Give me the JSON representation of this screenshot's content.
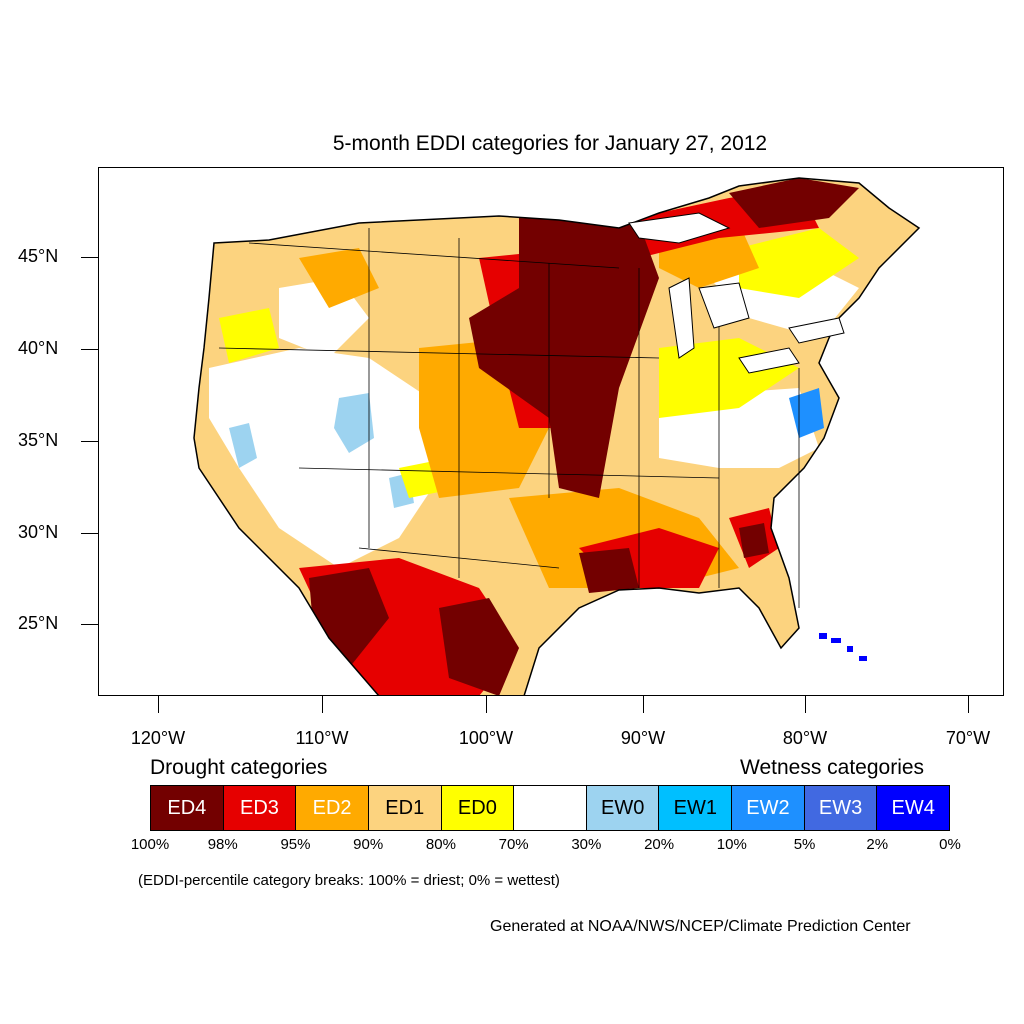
{
  "title": "5-month EDDI categories for January 27, 2012",
  "lat_labels": [
    "45°N",
    "40°N",
    "35°N",
    "30°N",
    "25°N"
  ],
  "lon_labels": [
    "120°W",
    "110°W",
    "100°W",
    "90°W",
    "80°W",
    "70°W"
  ],
  "legend": {
    "drought_heading": "Drought categories",
    "wetness_heading": "Wetness categories",
    "categories": [
      {
        "label": "ED4",
        "color": "#730000",
        "text_color": "#ffffff"
      },
      {
        "label": "ED3",
        "color": "#e60000",
        "text_color": "#ffffff"
      },
      {
        "label": "ED2",
        "color": "#ffaa00",
        "text_color": "#ffffff"
      },
      {
        "label": "ED1",
        "color": "#fcd37f",
        "text_color": "#000000"
      },
      {
        "label": "ED0",
        "color": "#ffff00",
        "text_color": "#000000"
      },
      {
        "label": "",
        "color": "#ffffff",
        "text_color": "#000000"
      },
      {
        "label": "EW0",
        "color": "#9dd3f0",
        "text_color": "#000000"
      },
      {
        "label": "EW1",
        "color": "#00bfff",
        "text_color": "#000000"
      },
      {
        "label": "EW2",
        "color": "#1e90ff",
        "text_color": "#ffffff"
      },
      {
        "label": "EW3",
        "color": "#4169e1",
        "text_color": "#ffffff"
      },
      {
        "label": "EW4",
        "color": "#0000ff",
        "text_color": "#ffffff"
      }
    ],
    "percent_breaks": [
      "100%",
      "98%",
      "95%",
      "90%",
      "80%",
      "70%",
      "30%",
      "20%",
      "10%",
      "5%",
      "2%",
      "0%"
    ]
  },
  "note": "(EDDI-percentile category breaks: 100% = driest; 0% = wettest)",
  "credit": "Generated at NOAA/NWS/NCEP/Climate Prediction Center"
}
